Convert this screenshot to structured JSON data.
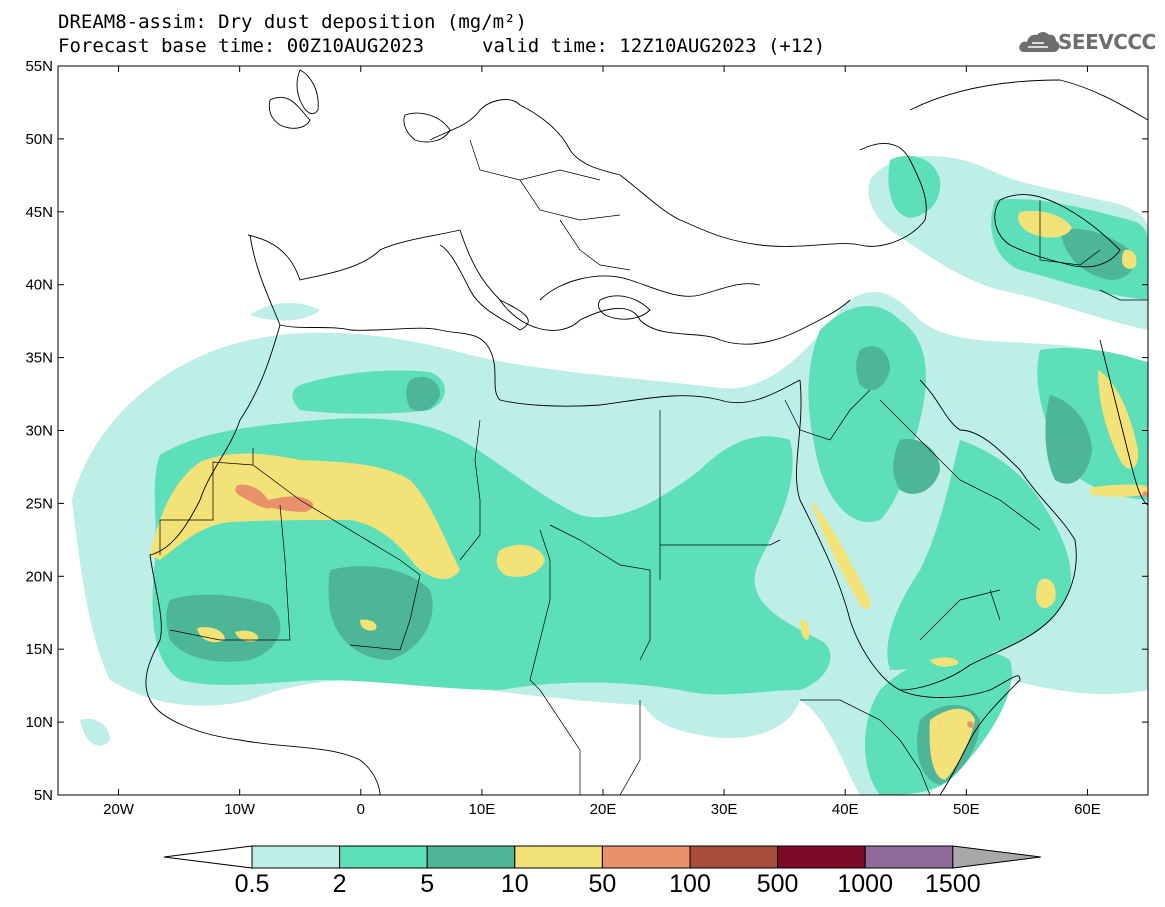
{
  "header": {
    "title": "DREAM8-assim: Dry dust deposition (mg/m²)",
    "base_time": "Forecast base time: 00Z10AUG2023",
    "valid_time": "valid time: 12Z10AUG2023 (+12)"
  },
  "logo": {
    "text": "SEEVCCC",
    "icon": "cloud-icon"
  },
  "map": {
    "lon_range": [
      -25,
      65
    ],
    "lat_range": [
      5,
      55
    ],
    "lat_labels": [
      "55N",
      "50N",
      "45N",
      "40N",
      "35N",
      "30N",
      "25N",
      "20N",
      "15N",
      "10N",
      "5N"
    ],
    "lon_labels": [
      "20W",
      "10W",
      "0",
      "10E",
      "20E",
      "30E",
      "40E",
      "50E",
      "60E"
    ]
  },
  "colorbar": {
    "levels": [
      "0.5",
      "2",
      "5",
      "10",
      "50",
      "100",
      "500",
      "1000",
      "1500"
    ],
    "colors": [
      "#bdeee8",
      "#5ddfb9",
      "#4db696",
      "#f2e277",
      "#e9916b",
      "#a94c3e",
      "#7d0b28",
      "#8f6a9c"
    ],
    "under_color": "#ffffff",
    "over_color": "#a8a8a8"
  }
}
